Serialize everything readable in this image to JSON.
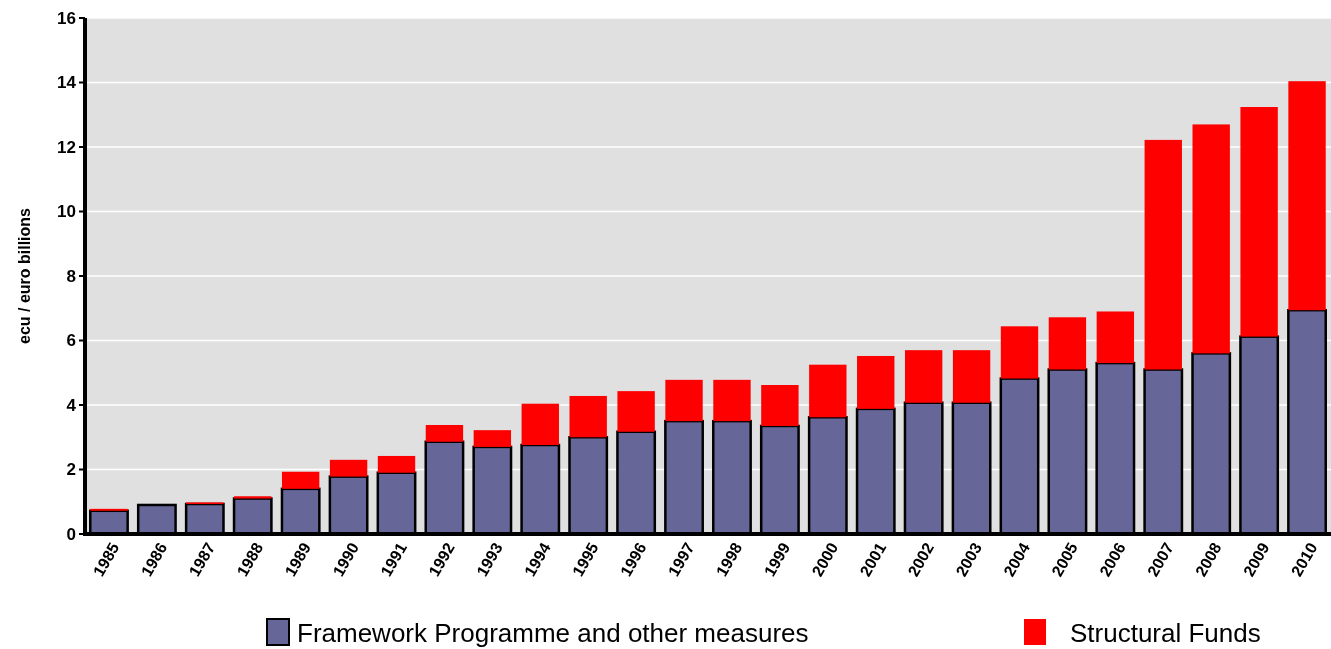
{
  "chart_data": {
    "type": "bar",
    "stacked": true,
    "ylabel": "ecu / euro billions",
    "categories": [
      "1985",
      "1986",
      "1987",
      "1988",
      "1989",
      "1990",
      "1991",
      "1992",
      "1993",
      "1994",
      "1995",
      "1996",
      "1997",
      "1998",
      "1999",
      "2000",
      "2001",
      "2002",
      "2003",
      "2004",
      "2005",
      "2006",
      "2007",
      "2008",
      "2009",
      "2010"
    ],
    "series": [
      {
        "name": "Framework Programme and other measures",
        "color": "#666699",
        "values": [
          0.72,
          0.9,
          0.93,
          1.1,
          1.4,
          1.78,
          1.9,
          2.86,
          2.7,
          2.76,
          3.0,
          3.17,
          3.5,
          3.5,
          3.35,
          3.62,
          3.88,
          4.07,
          4.07,
          4.82,
          5.1,
          5.3,
          5.1,
          5.6,
          6.12,
          6.94
        ]
      },
      {
        "name": "Structural Funds",
        "color": "#ff0000",
        "values": [
          0.06,
          0,
          0.05,
          0.07,
          0.53,
          0.52,
          0.52,
          0.52,
          0.52,
          1.28,
          1.28,
          1.26,
          1.28,
          1.28,
          1.27,
          1.63,
          1.64,
          1.63,
          1.63,
          1.62,
          1.62,
          1.6,
          7.12,
          7.1,
          7.12,
          7.1
        ]
      }
    ],
    "ylim": [
      0,
      16
    ],
    "yticks": [
      0,
      2,
      4,
      6,
      8,
      10,
      12,
      14,
      16
    ],
    "grid": "y",
    "legend": "bottom"
  }
}
